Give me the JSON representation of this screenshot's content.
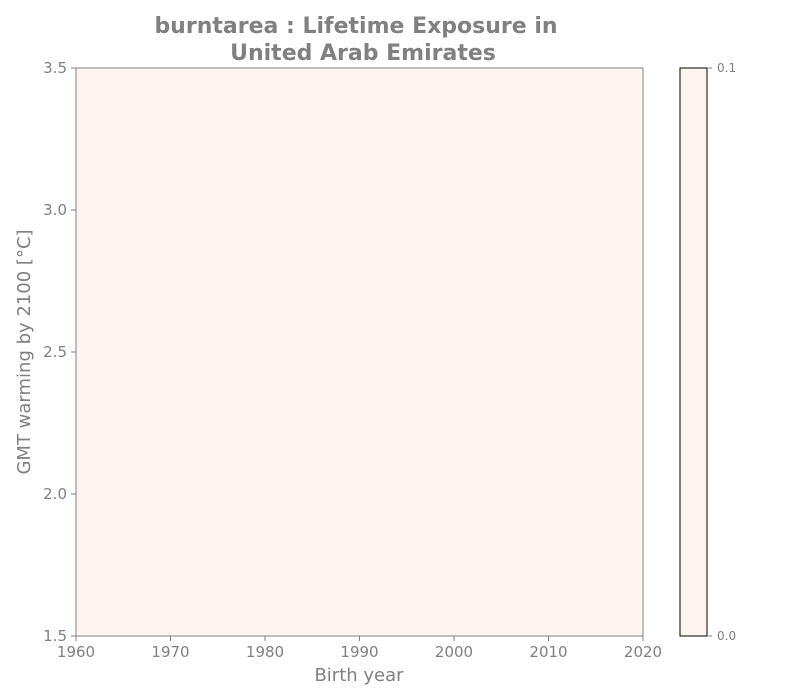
{
  "chart_data": {
    "type": "heatmap",
    "title_lines": [
      "burntarea : Lifetime Exposure in",
      "United Arab Emirates"
    ],
    "xlabel": "Birth year",
    "ylabel": "GMT warming by 2100 [°C]",
    "xlim": [
      1960,
      2020
    ],
    "ylim": [
      1.5,
      3.5
    ],
    "x_ticks": [
      1960,
      1970,
      1980,
      1990,
      2000,
      2010,
      2020
    ],
    "y_ticks": [
      1.5,
      2.0,
      2.5,
      3.0,
      3.5
    ],
    "x_tick_labels": [
      "1960",
      "1970",
      "1980",
      "1990",
      "2000",
      "2010",
      "2020"
    ],
    "y_tick_labels": [
      "1.5",
      "2.0",
      "2.5",
      "3.0",
      "3.5"
    ],
    "field": {
      "x_range": [
        1960,
        2020
      ],
      "y_range": [
        1.5,
        3.5
      ],
      "value": 0.0
    },
    "colorbar": {
      "min": 0.0,
      "max": 0.1,
      "ticks": [
        0.0,
        0.1
      ],
      "tick_labels": [
        "0.0",
        "0.1"
      ],
      "color_low": "#fff5f0",
      "color_high": "#fff5f0"
    },
    "colors": {
      "field": "#fff5f0",
      "text": "#808080",
      "axis": "#808080",
      "colorbar_frame": "#000000"
    }
  }
}
